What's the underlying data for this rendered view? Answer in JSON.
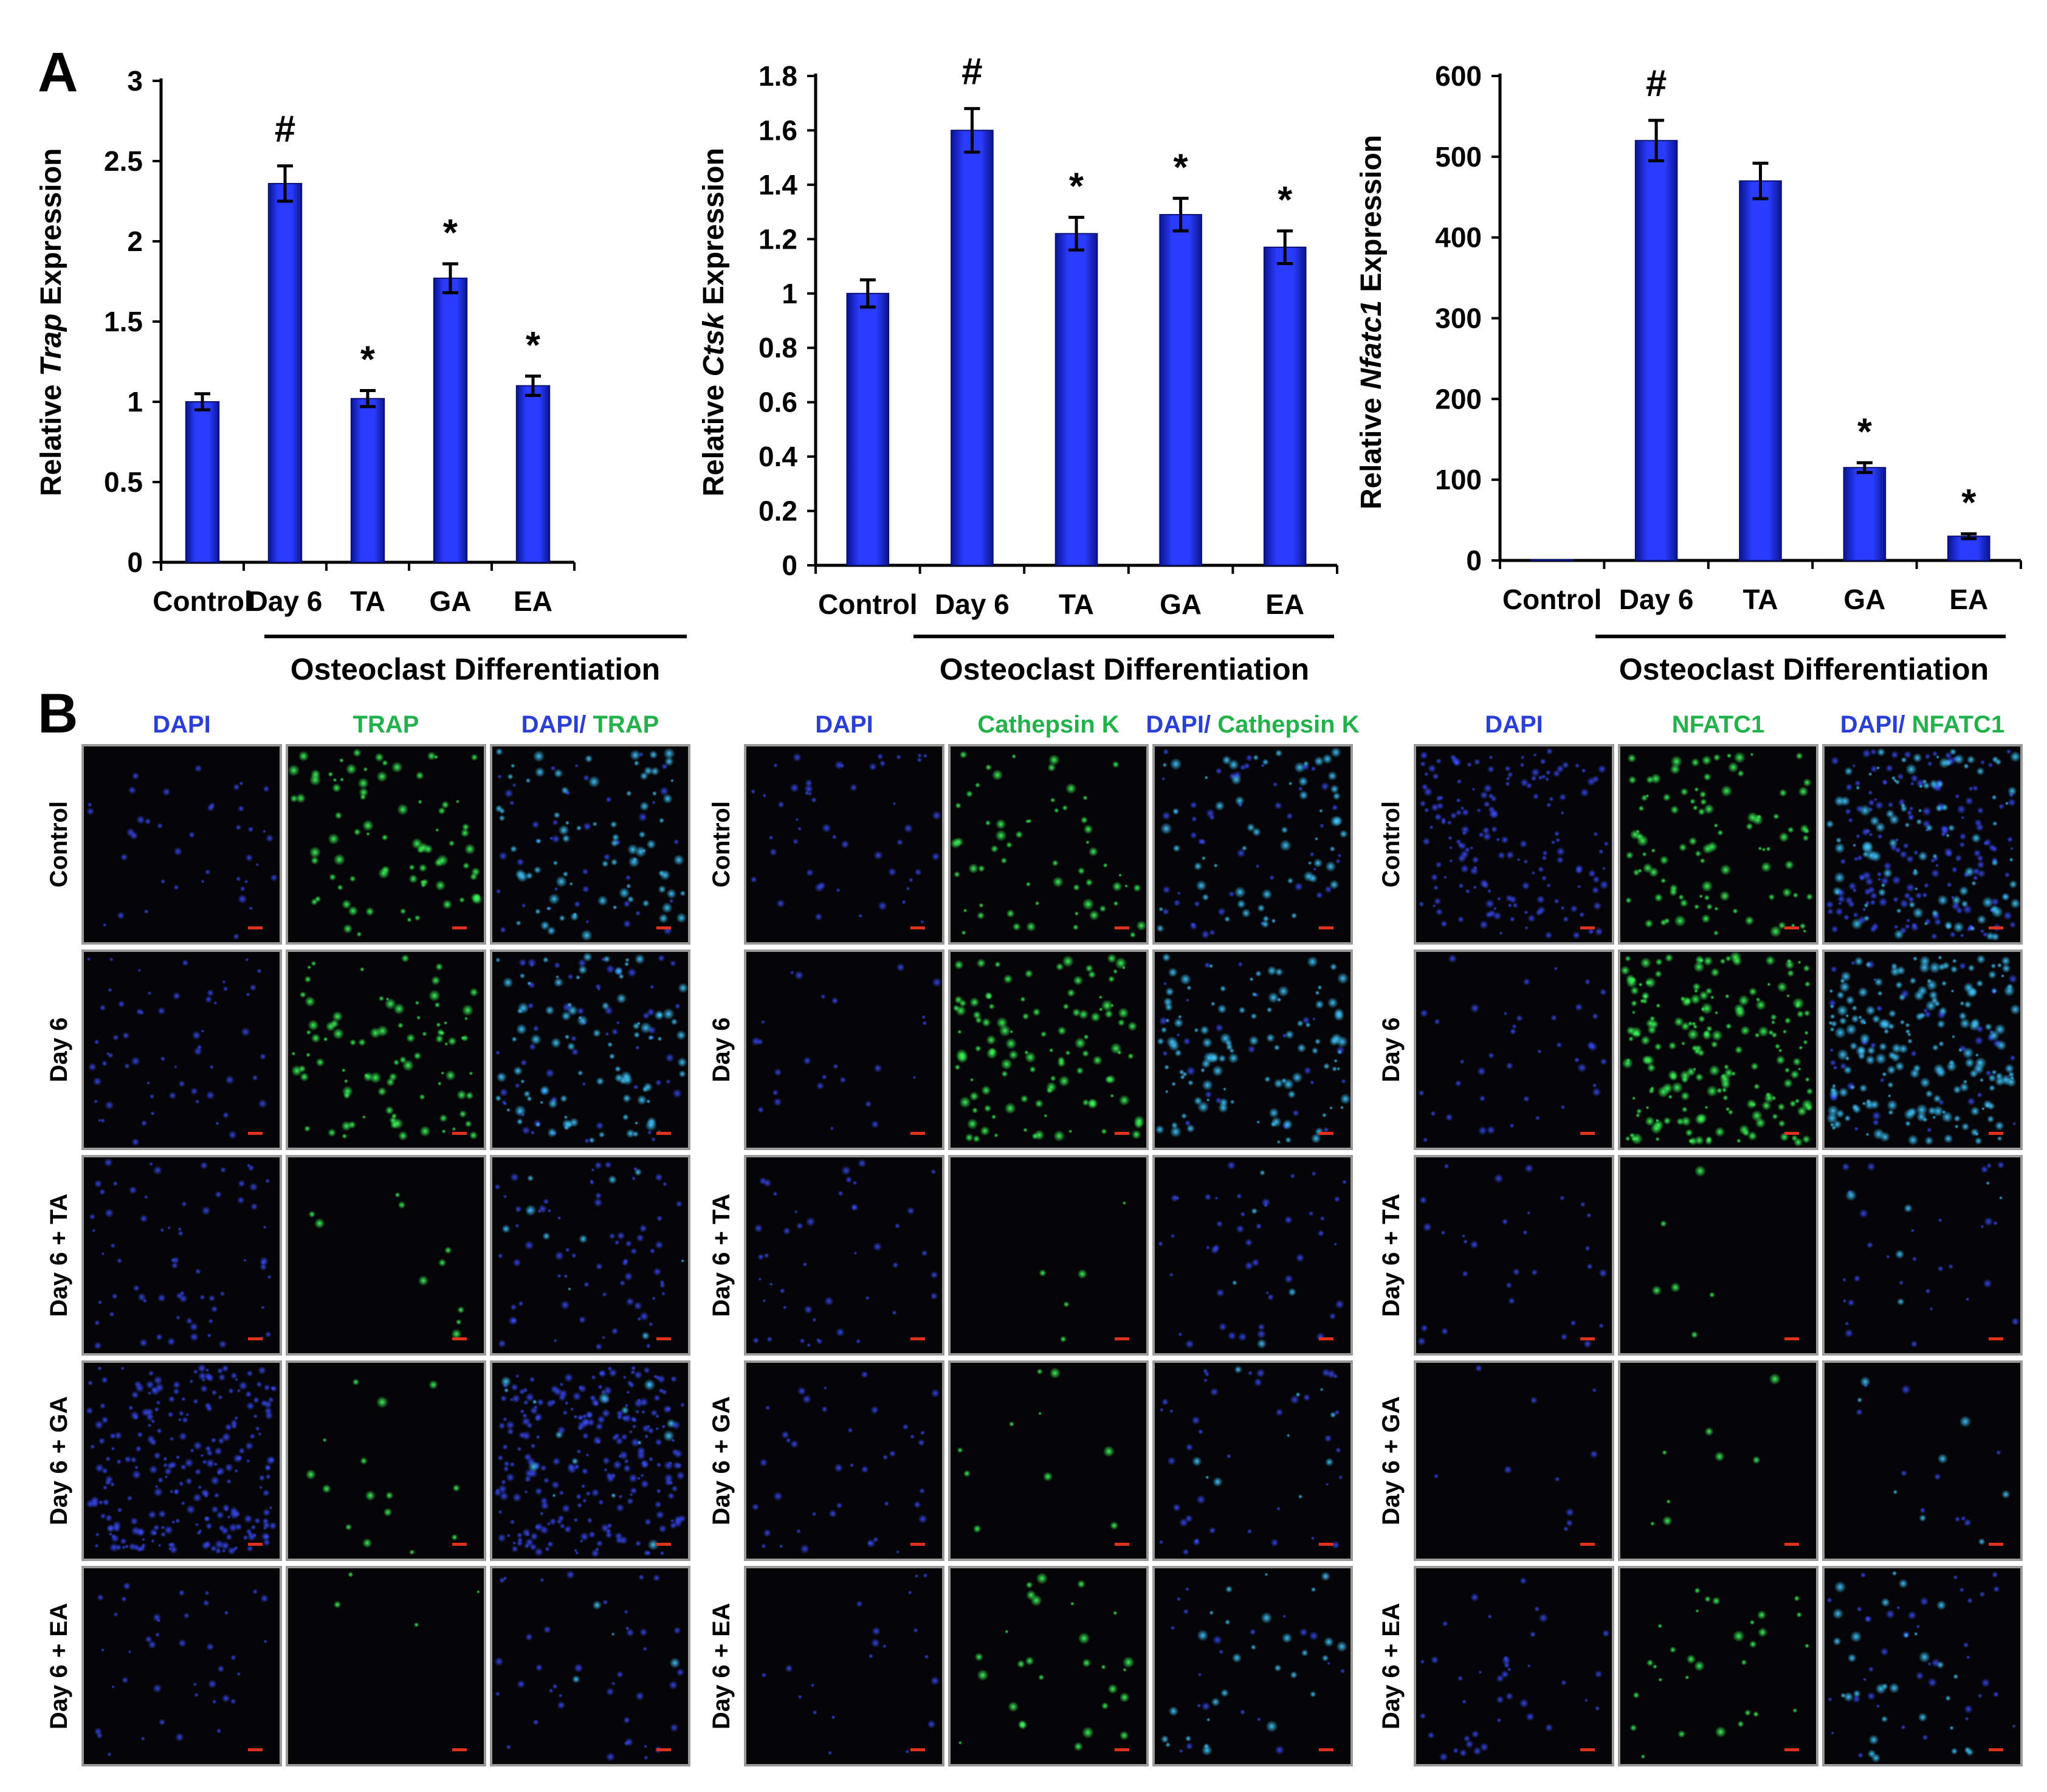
{
  "panel_a": {
    "letter": "A",
    "group_label": "Osteoclast Differentiation"
  },
  "panel_b": {
    "letter": "B",
    "grids": [
      {
        "headers": [
          {
            "parts": [
              {
                "text": "DAPI",
                "color": "dapi"
              }
            ]
          },
          {
            "parts": [
              {
                "text": "TRAP",
                "color": "green"
              }
            ]
          },
          {
            "parts": [
              {
                "text": "DAPI",
                "color": "dapi"
              },
              {
                "text": "/ ",
                "color": "dapi"
              },
              {
                "text": "TRAP",
                "color": "green"
              }
            ]
          }
        ],
        "rows": [
          "Control",
          "Day 6",
          "Day 6  + TA",
          "Day 6 + GA",
          "Day 6 + EA"
        ]
      },
      {
        "headers": [
          {
            "parts": [
              {
                "text": "DAPI",
                "color": "dapi"
              }
            ]
          },
          {
            "parts": [
              {
                "text": "Cathepsin K",
                "color": "green"
              }
            ]
          },
          {
            "parts": [
              {
                "text": "DAPI",
                "color": "dapi"
              },
              {
                "text": "/ ",
                "color": "dapi"
              },
              {
                "text": "Cathepsin K",
                "color": "green"
              }
            ]
          }
        ],
        "rows": [
          "Control",
          "Day 6",
          "Day 6  + TA",
          "Day 6 + GA",
          "Day 6 + EA"
        ]
      },
      {
        "headers": [
          {
            "parts": [
              {
                "text": "DAPI",
                "color": "dapi"
              }
            ]
          },
          {
            "parts": [
              {
                "text": "NFATC1",
                "color": "green"
              }
            ]
          },
          {
            "parts": [
              {
                "text": "DAPI",
                "color": "dapi"
              },
              {
                "text": "/ ",
                "color": "dapi"
              },
              {
                "text": "NFATC1",
                "color": "green"
              }
            ]
          }
        ],
        "rows": [
          "Control",
          "Day 6",
          "Day 6  + TA",
          "Day 6 + GA",
          "Day 6 + EA"
        ]
      }
    ],
    "colors": {
      "dapi": "#2a3fd9",
      "green": "#22b24c",
      "scale_bar": "#e0301e",
      "image_bg": "#050508"
    }
  },
  "chart_data": [
    {
      "type": "bar",
      "categories": [
        "Control",
        "Day 6",
        "TA",
        "GA",
        "EA"
      ],
      "values": [
        1.0,
        2.36,
        1.02,
        1.77,
        1.1
      ],
      "errors": [
        0.05,
        0.11,
        0.05,
        0.09,
        0.06
      ],
      "significance": [
        "",
        "#",
        "*",
        "*",
        "*"
      ],
      "ylabel_parts": [
        "Relative ",
        "Trap",
        " Expression"
      ],
      "ylim": [
        0,
        3
      ],
      "yticks": [
        0,
        0.5,
        1,
        1.5,
        2,
        2.5,
        3
      ],
      "ytick_labels": [
        "0",
        "0.5",
        "1",
        "1.5",
        "2",
        "2.5",
        "3"
      ],
      "bar_color": "#1a2be8",
      "grid": false
    },
    {
      "type": "bar",
      "categories": [
        "Control",
        "Day 6",
        "TA",
        "GA",
        "EA"
      ],
      "values": [
        1.0,
        1.6,
        1.22,
        1.29,
        1.17
      ],
      "errors": [
        0.05,
        0.08,
        0.06,
        0.06,
        0.06
      ],
      "significance": [
        "",
        "#",
        "*",
        "*",
        "*"
      ],
      "ylabel_parts": [
        "Relative ",
        "Ctsk",
        " Expression"
      ],
      "ylim": [
        0,
        1.8
      ],
      "yticks": [
        0,
        0.2,
        0.4,
        0.6,
        0.8,
        1,
        1.2,
        1.4,
        1.6,
        1.8
      ],
      "ytick_labels": [
        "0",
        "0.2",
        "0.4",
        "0.6",
        "0.8",
        "1",
        "1.2",
        "1.4",
        "1.6",
        "1.8"
      ],
      "bar_color": "#1a2be8",
      "grid": false
    },
    {
      "type": "bar",
      "categories": [
        "Control",
        "Day 6",
        "TA",
        "GA",
        "EA"
      ],
      "values": [
        1,
        520,
        470,
        115,
        30
      ],
      "errors": [
        0,
        25,
        22,
        6,
        3
      ],
      "significance": [
        "",
        "#",
        "",
        "*",
        "*"
      ],
      "ylabel_parts": [
        "Relative ",
        "Nfatc1",
        " Expression"
      ],
      "ylim": [
        0,
        600
      ],
      "yticks": [
        0,
        100,
        200,
        300,
        400,
        500,
        600
      ],
      "ytick_labels": [
        "0",
        "100",
        "200",
        "300",
        "400",
        "500",
        "600"
      ],
      "bar_color": "#1a2be8",
      "grid": false
    }
  ]
}
